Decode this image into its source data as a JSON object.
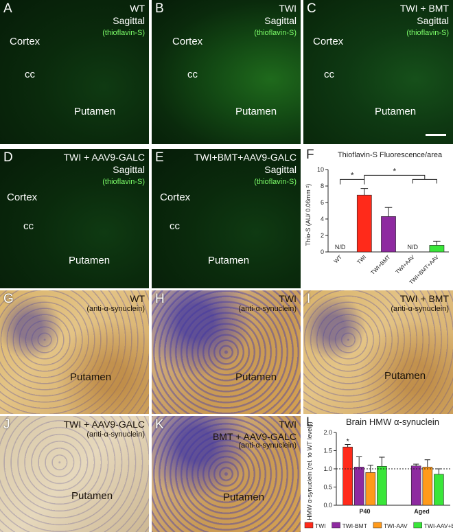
{
  "panels": [
    {
      "label": "A",
      "title": [
        "WT",
        "Sagittal"
      ],
      "stain": "(thioflavin-S)",
      "regions": [
        "Cortex",
        "cc",
        "Putamen"
      ]
    },
    {
      "label": "B",
      "title": [
        "TWI",
        "Sagittal"
      ],
      "stain": "(thioflavin-S)",
      "regions": [
        "Cortex",
        "cc",
        "Putamen"
      ]
    },
    {
      "label": "C",
      "title": [
        "TWI + BMT",
        "Sagittal"
      ],
      "stain": "(thioflavin-S)",
      "regions": [
        "Cortex",
        "cc",
        "Putamen"
      ]
    },
    {
      "label": "D",
      "title": [
        "TWI + AAV9-GALC",
        "Sagittal"
      ],
      "stain": "(thioflavin-S)",
      "regions": [
        "Cortex",
        "cc",
        "Putamen"
      ]
    },
    {
      "label": "E",
      "title": [
        "TWI+BMT+AAV9-GALC",
        "Sagittal"
      ],
      "stain": "(thioflavin-S)",
      "regions": [
        "Cortex",
        "cc",
        "Putamen"
      ]
    },
    {
      "label": "G",
      "title": [
        "WT"
      ],
      "stain": "(anti-α-synuclein)",
      "regions": [
        "Putamen"
      ]
    },
    {
      "label": "H",
      "title": [
        "TWI"
      ],
      "stain": "(anti-α-synuclein)",
      "regions": [
        "Putamen"
      ]
    },
    {
      "label": "I",
      "title": [
        "TWI + BMT"
      ],
      "stain": "(anti-α-synuclein)",
      "regions": [
        "Putamen"
      ]
    },
    {
      "label": "J",
      "title": [
        "TWI + AAV9-GALC"
      ],
      "stain": "(anti-α-synuclein)",
      "regions": [
        "Putamen"
      ]
    },
    {
      "label": "K",
      "title": [
        "TWI",
        "BMT + AAV9-GALC"
      ],
      "stain": "(anti-α-synuclein)",
      "regions": [
        "Putamen"
      ]
    }
  ],
  "chart_data": [
    {
      "type": "bar",
      "label": "F",
      "title": "Thioflavin-S Fluorescence/area",
      "ylabel": "Thio-S (AU/ 0.06mm ²)",
      "categories": [
        "WT",
        "TWI",
        "TWI+BMT",
        "TWI+AAV",
        "TWI+BMT+AAV"
      ],
      "values": [
        null,
        6.9,
        4.3,
        null,
        0.8
      ],
      "errors": [
        null,
        0.8,
        1.1,
        null,
        0.5
      ],
      "value_labels": [
        "N/D",
        null,
        null,
        "N/D",
        null
      ],
      "colors": [
        "#ff2a1a",
        "#ff2a1a",
        "#8e2aa0",
        "#39e639",
        "#39e639"
      ],
      "ylim": [
        0,
        10
      ],
      "yticks": [
        0,
        2,
        4,
        6,
        8,
        10
      ],
      "annotations": [
        "*",
        "*"
      ]
    },
    {
      "type": "bar",
      "label": "L",
      "title": "Brain HMW α-synuclein",
      "ylabel": "HMW α-synuclein (rel. to WT levels)",
      "categories": [
        "P40",
        "Aged"
      ],
      "series": [
        {
          "name": "TWI",
          "color": "#ff2a1a",
          "values": [
            1.6,
            null
          ],
          "errors": [
            0.07,
            null
          ]
        },
        {
          "name": "TWI-BMT",
          "color": "#8e2aa0",
          "values": [
            1.05,
            1.08
          ],
          "errors": [
            0.28,
            0.05
          ]
        },
        {
          "name": "TWI-AAV",
          "color": "#ff9a1a",
          "values": [
            0.9,
            1.05
          ],
          "errors": [
            0.2,
            0.2
          ]
        },
        {
          "name": "TWI-AAV+BMT",
          "color": "#39e639",
          "values": [
            1.07,
            0.85
          ],
          "errors": [
            0.25,
            0.15
          ]
        }
      ],
      "ylim": [
        0,
        2
      ],
      "yticks": [
        {
          "value": 0,
          "label": "0.0"
        },
        0.5,
        {
          "value": 1,
          "label": "1.0"
        },
        1.5,
        {
          "value": 2,
          "label": "2.0"
        }
      ],
      "reference_line": 1,
      "annotations": [
        "*"
      ]
    }
  ]
}
